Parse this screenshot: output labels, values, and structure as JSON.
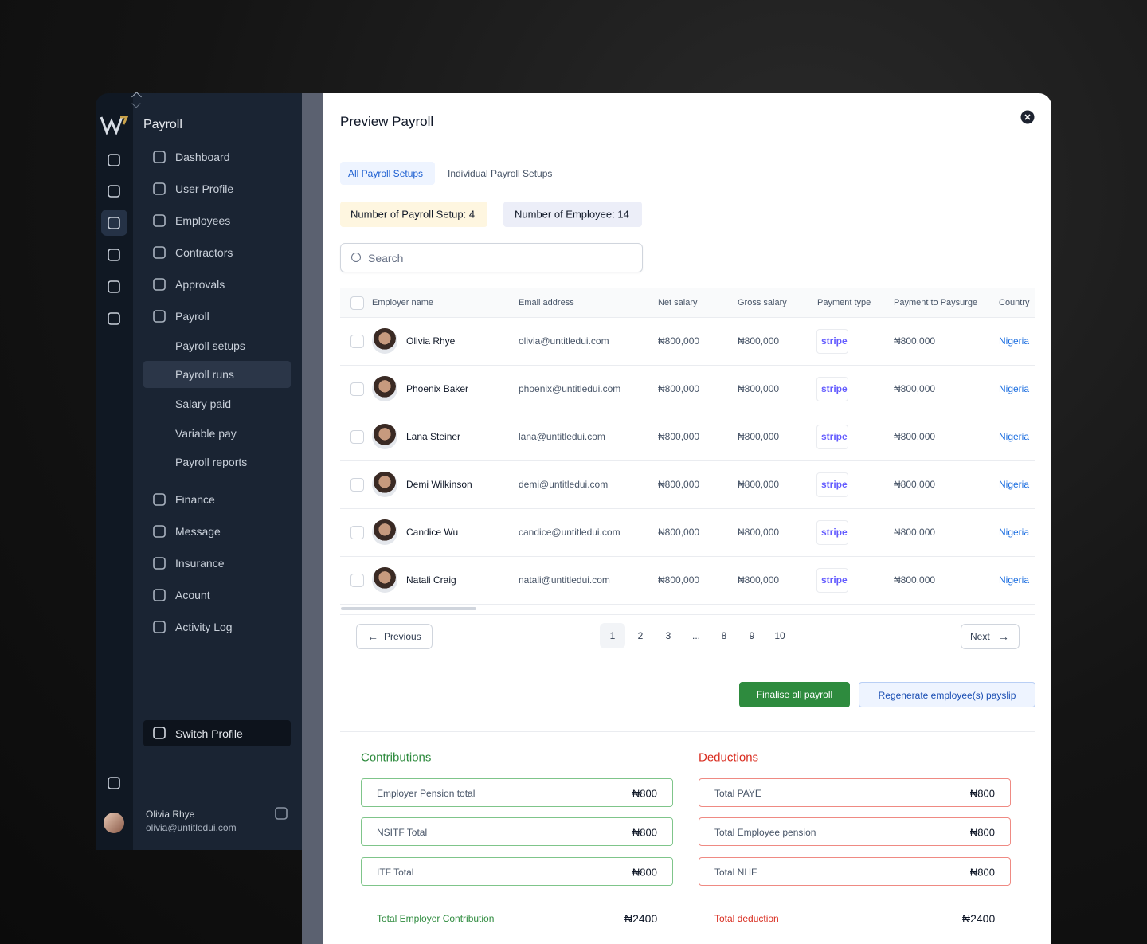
{
  "sidebar": {
    "section_title": "Payroll",
    "nav": [
      "Dashboard",
      "User Profile",
      "Employees",
      "Contractors",
      "Approvals",
      "Payroll"
    ],
    "payroll_sub": [
      "Payroll setups",
      "Payroll runs",
      "Salary paid",
      "Variable pay",
      "Payroll reports"
    ],
    "nav2": [
      "Finance",
      "Message",
      "Insurance",
      "Acount",
      "Activity Log"
    ],
    "switch_profile": "Switch Profile",
    "user": {
      "name": "Olivia Rhye",
      "email": "olivia@untitledui.com"
    }
  },
  "modal": {
    "title": "Preview Payroll",
    "tabs": [
      "All Payroll Setups",
      "Individual Payroll Setups"
    ],
    "badges": [
      "Number of Payroll Setup: 4",
      "Number of Employee: 14"
    ],
    "search_placeholder": "Search",
    "table": {
      "columns": [
        "Employer name",
        "Email address",
        "Net salary",
        "Gross salary",
        "Payment type",
        "Payment to Paysurge",
        "Country"
      ],
      "rows": [
        [
          "Olivia Rhye",
          "olivia@untitledui.com",
          "₦800,000",
          "₦800,000",
          "stripe",
          "₦800,000",
          "Nigeria"
        ],
        [
          "Phoenix Baker",
          "phoenix@untitledui.com",
          "₦800,000",
          "₦800,000",
          "stripe",
          "₦800,000",
          "Nigeria"
        ],
        [
          "Lana Steiner",
          "lana@untitledui.com",
          "₦800,000",
          "₦800,000",
          "stripe",
          "₦800,000",
          "Nigeria"
        ],
        [
          "Demi Wilkinson",
          "demi@untitledui.com",
          "₦800,000",
          "₦800,000",
          "stripe",
          "₦800,000",
          "Nigeria"
        ],
        [
          "Candice Wu",
          "candice@untitledui.com",
          "₦800,000",
          "₦800,000",
          "stripe",
          "₦800,000",
          "Nigeria"
        ],
        [
          "Natali Craig",
          "natali@untitledui.com",
          "₦800,000",
          "₦800,000",
          "stripe",
          "₦800,000",
          "Nigeria"
        ]
      ]
    },
    "pagination": {
      "previous": "Previous",
      "pages": [
        "1",
        "2",
        "3",
        "...",
        "8",
        "9",
        "10"
      ],
      "next": "Next"
    },
    "buttons": {
      "finalise": "Finalise all payroll",
      "regenerate": "Regenerate employee(s) payslip"
    },
    "contributions": {
      "title": "Contributions",
      "items": [
        {
          "label": "Employer Pension total",
          "value": "₦800"
        },
        {
          "label": "NSITF Total",
          "value": "₦800"
        },
        {
          "label": "ITF Total",
          "value": "₦800"
        }
      ],
      "total_label": "Total Employer Contribution",
      "total_value": "₦2400"
    },
    "deductions": {
      "title": "Deductions",
      "items": [
        {
          "label": "Total PAYE",
          "value": "₦800"
        },
        {
          "label": "Total  Employee pension",
          "value": "₦800"
        },
        {
          "label": "Total NHF",
          "value": "₦800"
        }
      ],
      "total_label": "Total deduction",
      "total_value": "₦2400"
    }
  }
}
